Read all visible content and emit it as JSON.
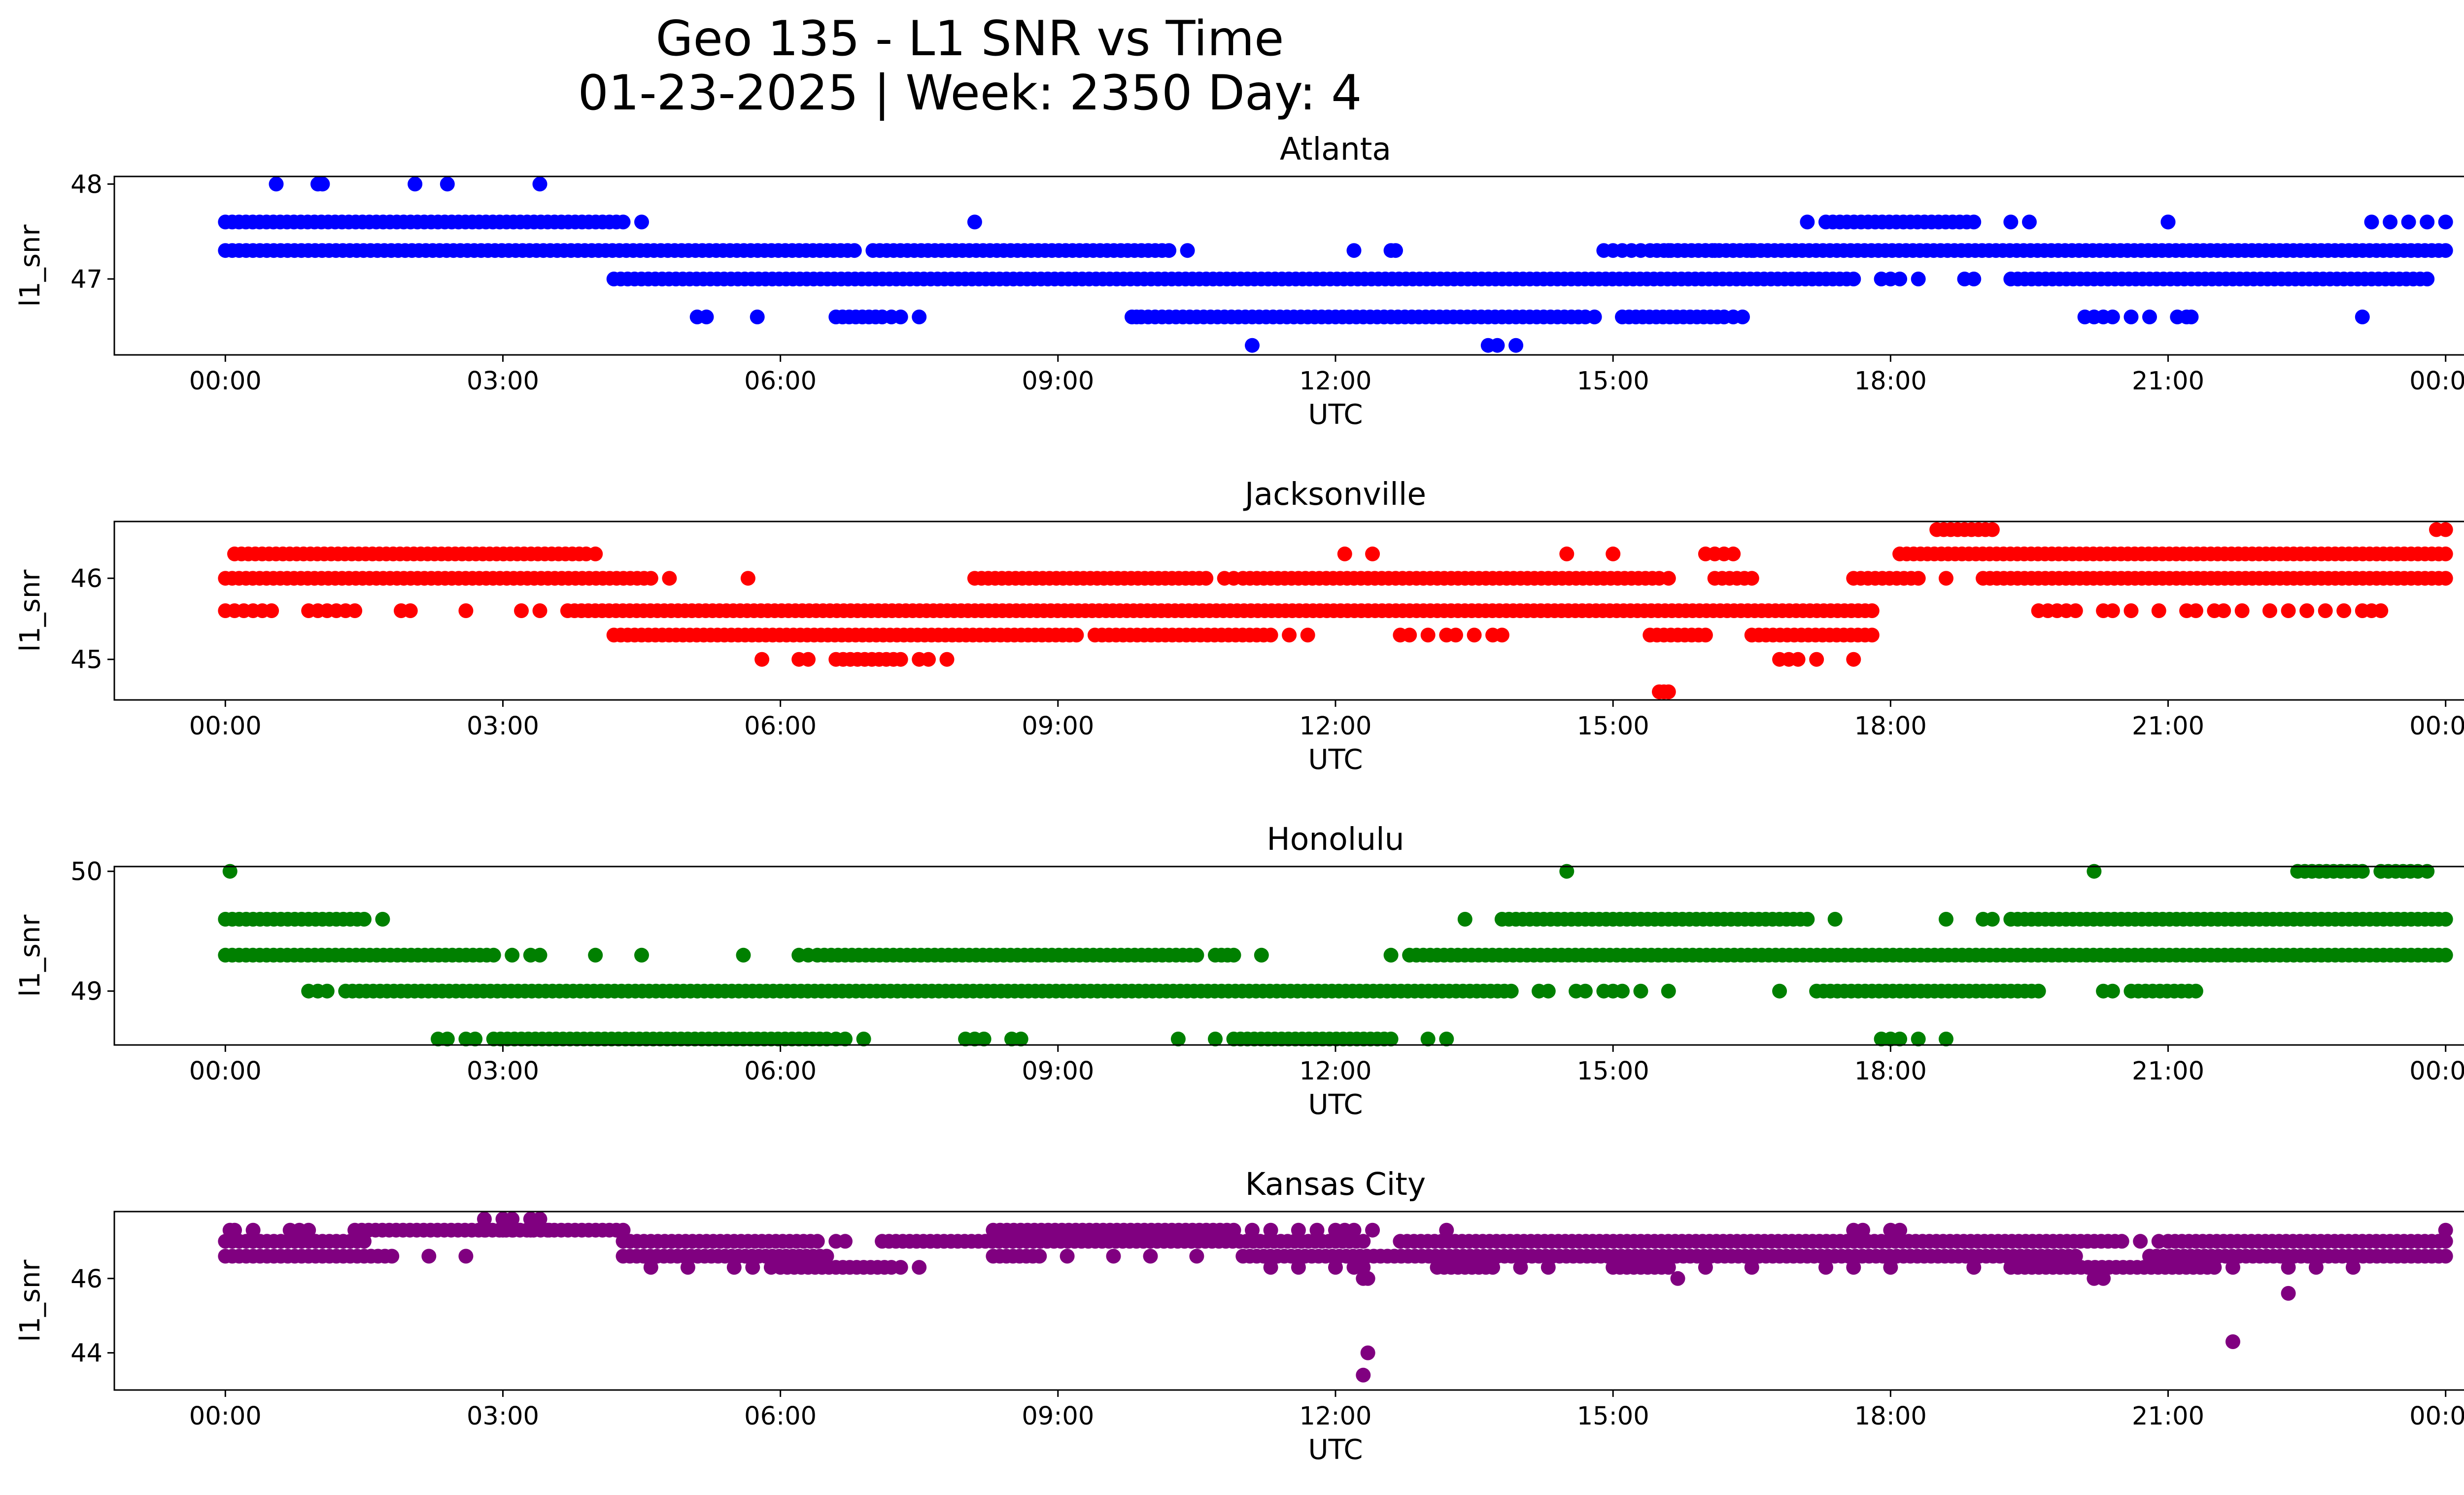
{
  "figure": {
    "title_line1": "Geo 135 - L1 SNR vs Time",
    "title_line2": "01-23-2025 | Week: 2350 Day: 4"
  },
  "chart_data": [
    {
      "type": "scatter",
      "title": "Atlanta",
      "xlabel": "UTC",
      "ylabel": "l1_snr",
      "color": "#0000ff",
      "x_unit": "hours UTC",
      "xlim": [
        -1.2,
        25.2
      ],
      "ylim": [
        46.2,
        48.08
      ],
      "xticks": [
        0,
        3,
        6,
        9,
        12,
        15,
        18,
        21,
        24
      ],
      "xtick_labels": [
        "00:00",
        "03:00",
        "06:00",
        "09:00",
        "12:00",
        "15:00",
        "18:00",
        "21:00",
        "00:00"
      ],
      "yticks": [
        47,
        48
      ],
      "ytick_labels": [
        "47",
        "48"
      ],
      "series": [
        {
          "y": 47.6,
          "segments": [
            [
              0,
              4.3
            ],
            [
              17.3,
              18.9
            ],
            [
              21.0,
              21.0
            ]
          ],
          "points": [
            4.5,
            8.1,
            17.1,
            19.3,
            19.5,
            23.2,
            23.4,
            23.6,
            23.8,
            24.0
          ]
        },
        {
          "y": 47.3,
          "segments": [
            [
              0,
              6.8
            ],
            [
              7.0,
              10.2
            ],
            [
              15.4,
              24.0
            ]
          ],
          "points": [
            10.4,
            12.2,
            12.6,
            12.65,
            14.9,
            15.0,
            15.1,
            15.2,
            15.3,
            15.6,
            15.7,
            16.0,
            16.1,
            16.3,
            16.5
          ]
        },
        {
          "y": 47.0,
          "segments": [
            [
              4.2,
              17.6
            ],
            [
              19.3,
              23.8
            ]
          ],
          "points": [
            17.9,
            18.0,
            18.1,
            18.3,
            18.8,
            18.9
          ]
        },
        {
          "y": 48.0,
          "segments": [],
          "points": [
            0.55,
            1.0,
            1.05,
            2.05,
            2.4,
            3.4
          ]
        },
        {
          "y": 46.6,
          "segments": [
            [
              6.6,
              7.1
            ],
            [
              9.9,
              14.7
            ],
            [
              15.1,
              16.2
            ]
          ],
          "points": [
            5.1,
            5.2,
            5.75,
            7.2,
            7.3,
            7.5,
            9.8,
            9.85,
            14.8,
            16.3,
            16.4,
            20.1,
            20.2,
            20.3,
            20.4,
            20.6,
            20.8,
            21.1,
            21.2,
            21.25,
            23.1
          ]
        },
        {
          "y": 46.3,
          "segments": [],
          "points": [
            11.1,
            13.65,
            13.75,
            13.95
          ]
        }
      ]
    },
    {
      "type": "scatter",
      "title": "Jacksonville",
      "xlabel": "UTC",
      "ylabel": "l1_snr",
      "color": "#ff0000",
      "x_unit": "hours UTC",
      "xlim": [
        -1.2,
        25.2
      ],
      "ylim": [
        44.5,
        46.7
      ],
      "xticks": [
        0,
        3,
        6,
        9,
        12,
        15,
        18,
        21,
        24
      ],
      "xtick_labels": [
        "00:00",
        "03:00",
        "06:00",
        "09:00",
        "12:00",
        "15:00",
        "18:00",
        "21:00",
        "00:00"
      ],
      "yticks": [
        45,
        46
      ],
      "ytick_labels": [
        "45",
        "46"
      ],
      "series": [
        {
          "y": 46.3,
          "segments": [
            [
              0.1,
              3.9
            ],
            [
              18.1,
              24.0
            ]
          ],
          "points": [
            4.0,
            12.1,
            12.4,
            14.5,
            15.0,
            16.0,
            16.1,
            16.2,
            16.3
          ]
        },
        {
          "y": 46.0,
          "segments": [
            [
              0,
              4.6
            ],
            [
              8.1,
              10.6
            ],
            [
              11.0,
              15.5
            ],
            [
              16.1,
              16.5
            ],
            [
              17.6,
              18.3
            ],
            [
              19.0,
              24.0
            ]
          ],
          "points": [
            4.8,
            5.65,
            10.8,
            10.9,
            15.6,
            18.6
          ]
        },
        {
          "y": 46.6,
          "segments": [
            [
              18.5,
              19.1
            ]
          ],
          "points": [
            23.9,
            24.0
          ]
        },
        {
          "y": 45.6,
          "segments": [
            [
              3.7,
              17.8
            ]
          ],
          "points": [
            0.0,
            0.1,
            0.2,
            0.3,
            0.4,
            0.5,
            0.9,
            1.0,
            1.1,
            1.2,
            1.3,
            1.4,
            1.9,
            2.0,
            2.6,
            3.2,
            3.4,
            19.6,
            19.7,
            19.8,
            19.9,
            20.0,
            20.3,
            20.4,
            20.6,
            20.9,
            21.2,
            21.3,
            21.5,
            21.6,
            21.8,
            22.1,
            22.3,
            22.5,
            22.7,
            22.9,
            23.1,
            23.2,
            23.3
          ]
        },
        {
          "y": 45.3,
          "segments": [
            [
              4.2,
              9.2
            ],
            [
              9.4,
              11.3
            ],
            [
              15.4,
              16.0
            ],
            [
              16.5,
              17.8
            ]
          ],
          "points": [
            11.5,
            11.7,
            12.7,
            12.8,
            13.0,
            13.2,
            13.3,
            13.5,
            13.7,
            13.8
          ]
        },
        {
          "y": 45.0,
          "segments": [
            [
              6.6,
              7.3
            ]
          ],
          "points": [
            5.8,
            6.2,
            6.3,
            7.5,
            7.6,
            7.8,
            16.8,
            16.9,
            17.0,
            17.2,
            17.6
          ]
        },
        {
          "y": 44.6,
          "segments": [],
          "points": [
            15.5,
            15.55,
            15.6
          ]
        }
      ]
    },
    {
      "type": "scatter",
      "title": "Honolulu",
      "xlabel": "UTC",
      "ylabel": "l1_snr",
      "color": "#008000",
      "x_unit": "hours UTC",
      "xlim": [
        -1.2,
        25.2
      ],
      "ylim": [
        48.55,
        50.04
      ],
      "xticks": [
        0,
        3,
        6,
        9,
        12,
        15,
        18,
        21,
        24
      ],
      "xtick_labels": [
        "00:00",
        "03:00",
        "06:00",
        "09:00",
        "12:00",
        "15:00",
        "18:00",
        "21:00",
        "00:00"
      ],
      "yticks": [
        49,
        50
      ],
      "ytick_labels": [
        "49",
        "50"
      ],
      "series": [
        {
          "y": 50.0,
          "segments": [
            [
              22.4,
              23.1
            ],
            [
              23.3,
              23.7
            ]
          ],
          "points": [
            0.05,
            14.5,
            20.2,
            23.8
          ]
        },
        {
          "y": 49.6,
          "segments": [
            [
              0,
              1.5
            ],
            [
              13.8,
              17.1
            ],
            [
              19.3,
              24.0
            ]
          ],
          "points": [
            1.7,
            13.4,
            17.4,
            18.6,
            19.0,
            19.1
          ]
        },
        {
          "y": 49.3,
          "segments": [
            [
              0,
              2.9
            ],
            [
              6.4,
              10.5
            ],
            [
              10.7,
              10.9
            ],
            [
              12.8,
              24.0
            ]
          ],
          "points": [
            3.1,
            3.3,
            3.4,
            4.0,
            4.5,
            5.6,
            6.2,
            6.3,
            11.2,
            12.6
          ]
        },
        {
          "y": 49.0,
          "segments": [
            [
              1.3,
              13.9
            ],
            [
              17.2,
              19.6
            ],
            [
              20.6,
              21.3
            ]
          ],
          "points": [
            0.9,
            1.0,
            1.1,
            14.2,
            14.3,
            14.6,
            14.7,
            14.9,
            15.0,
            15.1,
            15.3,
            15.6,
            16.8,
            20.3,
            20.4
          ]
        },
        {
          "y": 48.6,
          "segments": [
            [
              2.9,
              6.5
            ],
            [
              10.9,
              12.6
            ]
          ],
          "points": [
            2.3,
            2.4,
            2.6,
            2.7,
            6.6,
            6.7,
            6.9,
            8.0,
            8.1,
            8.2,
            8.5,
            8.6,
            10.3,
            10.7,
            13.0,
            13.2,
            17.9,
            18.0,
            18.1,
            18.3,
            18.6
          ]
        }
      ]
    },
    {
      "type": "scatter",
      "title": "Kansas City",
      "xlabel": "UTC",
      "ylabel": "l1_snr",
      "color": "#800080",
      "x_unit": "hours UTC",
      "xlim": [
        -1.2,
        25.2
      ],
      "ylim": [
        43.0,
        47.8
      ],
      "xticks": [
        0,
        3,
        6,
        9,
        12,
        15,
        18,
        21,
        24
      ],
      "xtick_labels": [
        "00:00",
        "03:00",
        "06:00",
        "09:00",
        "12:00",
        "15:00",
        "18:00",
        "21:00",
        "00:00"
      ],
      "yticks": [
        44,
        46
      ],
      "ytick_labels": [
        "44",
        "46"
      ],
      "series": [
        {
          "y": 47.6,
          "segments": [],
          "points": [
            2.8,
            3.0,
            3.1,
            3.3,
            3.4
          ]
        },
        {
          "y": 47.3,
          "segments": [
            [
              1.4,
              4.3
            ],
            [
              8.3,
              10.9
            ]
          ],
          "points": [
            0.05,
            0.1,
            0.3,
            0.7,
            0.8,
            0.9,
            2.8,
            3.0,
            3.1,
            3.3,
            3.5,
            11.1,
            11.3,
            11.6,
            11.8,
            12.0,
            12.1,
            12.2,
            12.4,
            13.2,
            17.6,
            17.7,
            18.0,
            18.1,
            24.0
          ]
        },
        {
          "y": 47.0,
          "segments": [
            [
              0,
              1.5
            ],
            [
              4.3,
              6.4
            ],
            [
              7.1,
              12.3
            ],
            [
              12.7,
              20.5
            ],
            [
              21.0,
              24.0
            ]
          ],
          "points": [
            6.6,
            6.7,
            20.7,
            20.9
          ]
        },
        {
          "y": 46.6,
          "segments": [
            [
              0,
              1.8
            ],
            [
              4.3,
              6.5
            ],
            [
              8.3,
              8.8
            ],
            [
              11.0,
              20.0
            ],
            [
              20.8,
              24.0
            ]
          ],
          "points": [
            2.2,
            2.6,
            9.1,
            9.6,
            10.0,
            10.5,
            14.0
          ]
        },
        {
          "y": 46.3,
          "segments": [
            [
              6.0,
              7.2
            ],
            [
              13.1,
              13.7
            ],
            [
              15.0,
              15.6
            ],
            [
              19.3,
              21.5
            ]
          ],
          "points": [
            4.6,
            5.0,
            5.5,
            5.7,
            5.9,
            7.3,
            7.5,
            11.3,
            11.6,
            12.0,
            12.2,
            12.3,
            14.0,
            14.3,
            16.0,
            16.5,
            17.3,
            17.6,
            18.0,
            18.9,
            21.7,
            22.3,
            22.6,
            23.0
          ]
        },
        {
          "y": 46.0,
          "segments": [],
          "points": [
            12.3,
            12.35,
            15.7,
            20.2,
            20.3
          ]
        },
        {
          "y": 45.6,
          "segments": [],
          "points": [
            22.3
          ]
        },
        {
          "y": 44.3,
          "segments": [],
          "points": [
            21.7
          ]
        },
        {
          "y": 44.0,
          "segments": [],
          "points": [
            12.35
          ]
        },
        {
          "y": 43.4,
          "segments": [],
          "points": [
            12.3
          ]
        }
      ]
    }
  ]
}
